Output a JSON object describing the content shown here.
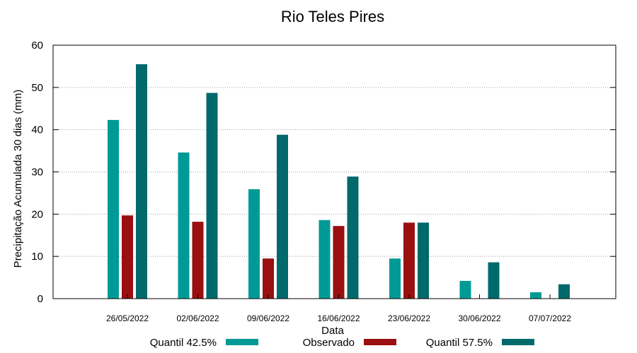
{
  "chart_data": {
    "type": "bar",
    "title": "Rio Teles Pires",
    "xlabel": "Data",
    "ylabel": "Precipitação Acumulada 30 dias (mm)",
    "ylim": [
      0,
      60
    ],
    "yticks": [
      0,
      10,
      20,
      30,
      40,
      50,
      60
    ],
    "grid": true,
    "legend_position": "bottom",
    "categories": [
      "26/05/2022",
      "02/06/2022",
      "09/06/2022",
      "16/06/2022",
      "23/06/2022",
      "30/06/2022",
      "07/07/2022"
    ],
    "series": [
      {
        "name": "Quantil 42.5%",
        "color": "#009a96",
        "values": [
          42.3,
          34.6,
          25.9,
          18.6,
          9.5,
          4.2,
          1.5
        ]
      },
      {
        "name": "Observado",
        "color": "#9a0f0f",
        "values": [
          19.7,
          18.2,
          9.5,
          17.2,
          18.0,
          null,
          null
        ]
      },
      {
        "name": "Quantil 57.5%",
        "color": "#00696b",
        "values": [
          55.5,
          48.7,
          38.8,
          28.9,
          18.0,
          8.6,
          3.4
        ]
      }
    ]
  }
}
